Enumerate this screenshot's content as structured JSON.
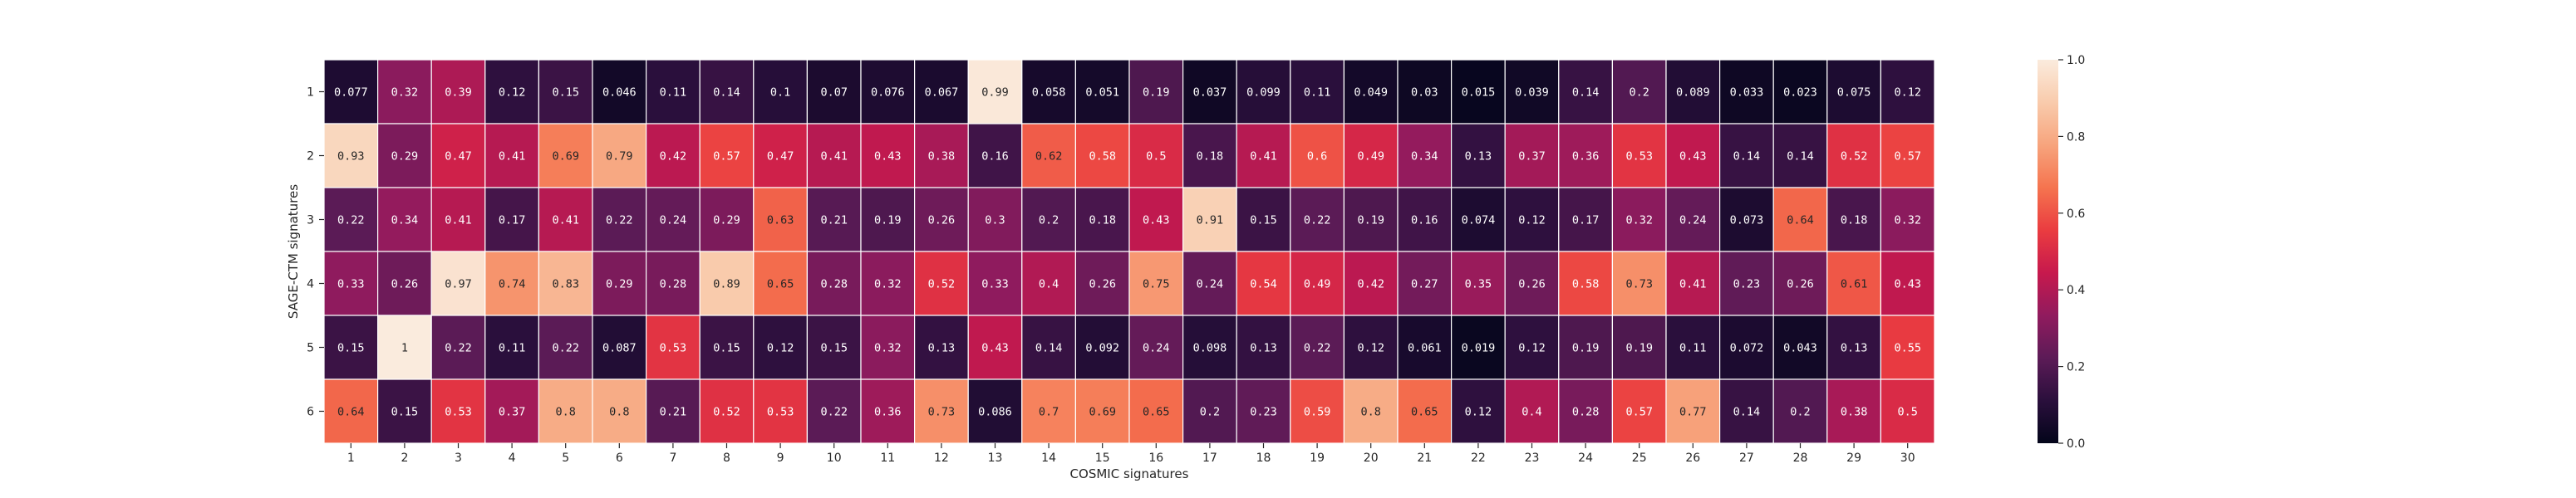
{
  "chart_data": {
    "type": "heatmap",
    "xlabel": "COSMIC signatures",
    "ylabel": "SAGE-CTM signatures",
    "x_categories": [
      "1",
      "2",
      "3",
      "4",
      "5",
      "6",
      "7",
      "8",
      "9",
      "10",
      "11",
      "12",
      "13",
      "14",
      "15",
      "16",
      "17",
      "18",
      "19",
      "20",
      "21",
      "22",
      "23",
      "24",
      "25",
      "26",
      "27",
      "28",
      "29",
      "30"
    ],
    "y_categories": [
      "1",
      "2",
      "3",
      "4",
      "5",
      "6"
    ],
    "values": [
      [
        0.077,
        0.32,
        0.39,
        0.12,
        0.15,
        0.046,
        0.11,
        0.14,
        0.1,
        0.07,
        0.076,
        0.067,
        0.99,
        0.058,
        0.051,
        0.19,
        0.037,
        0.099,
        0.11,
        0.049,
        0.03,
        0.015,
        0.039,
        0.14,
        0.2,
        0.089,
        0.033,
        0.023,
        0.075,
        0.12
      ],
      [
        0.93,
        0.29,
        0.47,
        0.41,
        0.69,
        0.79,
        0.42,
        0.57,
        0.47,
        0.41,
        0.43,
        0.38,
        0.16,
        0.62,
        0.58,
        0.5,
        0.18,
        0.41,
        0.6,
        0.49,
        0.34,
        0.13,
        0.37,
        0.36,
        0.53,
        0.43,
        0.14,
        0.14,
        0.52,
        0.57
      ],
      [
        0.22,
        0.34,
        0.41,
        0.17,
        0.41,
        0.22,
        0.24,
        0.29,
        0.63,
        0.21,
        0.19,
        0.26,
        0.3,
        0.2,
        0.18,
        0.43,
        0.91,
        0.15,
        0.22,
        0.19,
        0.16,
        0.074,
        0.12,
        0.17,
        0.32,
        0.24,
        0.073,
        0.64,
        0.18,
        0.32
      ],
      [
        0.33,
        0.26,
        0.97,
        0.74,
        0.83,
        0.29,
        0.28,
        0.89,
        0.65,
        0.28,
        0.32,
        0.52,
        0.33,
        0.4,
        0.26,
        0.75,
        0.24,
        0.54,
        0.49,
        0.42,
        0.27,
        0.35,
        0.26,
        0.58,
        0.73,
        0.41,
        0.23,
        0.26,
        0.61,
        0.43
      ],
      [
        0.15,
        1,
        0.22,
        0.11,
        0.22,
        0.087,
        0.53,
        0.15,
        0.12,
        0.15,
        0.32,
        0.13,
        0.43,
        0.14,
        0.092,
        0.24,
        0.098,
        0.13,
        0.22,
        0.12,
        0.061,
        0.019,
        0.12,
        0.19,
        0.19,
        0.11,
        0.072,
        0.043,
        0.13,
        0.55
      ],
      [
        0.64,
        0.15,
        0.53,
        0.37,
        0.8,
        0.8,
        0.21,
        0.52,
        0.53,
        0.22,
        0.36,
        0.73,
        0.086,
        0.7,
        0.69,
        0.65,
        0.2,
        0.23,
        0.59,
        0.8,
        0.65,
        0.12,
        0.4,
        0.28,
        0.57,
        0.77,
        0.14,
        0.2,
        0.38,
        0.5
      ]
    ],
    "value_labels": [
      [
        "0.077",
        "0.32",
        "0.39",
        "0.12",
        "0.15",
        "0.046",
        "0.11",
        "0.14",
        "0.1",
        "0.07",
        "0.076",
        "0.067",
        "0.99",
        "0.058",
        "0.051",
        "0.19",
        "0.037",
        "0.099",
        "0.11",
        "0.049",
        "0.03",
        "0.015",
        "0.039",
        "0.14",
        "0.2",
        "0.089",
        "0.033",
        "0.023",
        "0.075",
        "0.12"
      ],
      [
        "0.93",
        "0.29",
        "0.47",
        "0.41",
        "0.69",
        "0.79",
        "0.42",
        "0.57",
        "0.47",
        "0.41",
        "0.43",
        "0.38",
        "0.16",
        "0.62",
        "0.58",
        "0.5",
        "0.18",
        "0.41",
        "0.6",
        "0.49",
        "0.34",
        "0.13",
        "0.37",
        "0.36",
        "0.53",
        "0.43",
        "0.14",
        "0.14",
        "0.52",
        "0.57"
      ],
      [
        "0.22",
        "0.34",
        "0.41",
        "0.17",
        "0.41",
        "0.22",
        "0.24",
        "0.29",
        "0.63",
        "0.21",
        "0.19",
        "0.26",
        "0.3",
        "0.2",
        "0.18",
        "0.43",
        "0.91",
        "0.15",
        "0.22",
        "0.19",
        "0.16",
        "0.074",
        "0.12",
        "0.17",
        "0.32",
        "0.24",
        "0.073",
        "0.64",
        "0.18",
        "0.32"
      ],
      [
        "0.33",
        "0.26",
        "0.97",
        "0.74",
        "0.83",
        "0.29",
        "0.28",
        "0.89",
        "0.65",
        "0.28",
        "0.32",
        "0.52",
        "0.33",
        "0.4",
        "0.26",
        "0.75",
        "0.24",
        "0.54",
        "0.49",
        "0.42",
        "0.27",
        "0.35",
        "0.26",
        "0.58",
        "0.73",
        "0.41",
        "0.23",
        "0.26",
        "0.61",
        "0.43"
      ],
      [
        "0.15",
        "1",
        "0.22",
        "0.11",
        "0.22",
        "0.087",
        "0.53",
        "0.15",
        "0.12",
        "0.15",
        "0.32",
        "0.13",
        "0.43",
        "0.14",
        "0.092",
        "0.24",
        "0.098",
        "0.13",
        "0.22",
        "0.12",
        "0.061",
        "0.019",
        "0.12",
        "0.19",
        "0.19",
        "0.11",
        "0.072",
        "0.043",
        "0.13",
        "0.55"
      ],
      [
        "0.64",
        "0.15",
        "0.53",
        "0.37",
        "0.8",
        "0.8",
        "0.21",
        "0.52",
        "0.53",
        "0.22",
        "0.36",
        "0.73",
        "0.086",
        "0.7",
        "0.69",
        "0.65",
        "0.2",
        "0.23",
        "0.59",
        "0.8",
        "0.65",
        "0.12",
        "0.4",
        "0.28",
        "0.57",
        "0.77",
        "0.14",
        "0.2",
        "0.38",
        "0.5"
      ]
    ],
    "colormap": "rocket",
    "colormap_stops": [
      "#03051a",
      "#2a0f3c",
      "#5c1b57",
      "#911b5e",
      "#c7194d",
      "#ea3c40",
      "#f5744f",
      "#f7a47d",
      "#f9cbac",
      "#faebdd"
    ],
    "vmin": 0,
    "vmax": 1,
    "colorbar_ticks": [
      "0.0",
      "0.2",
      "0.4",
      "0.6",
      "0.8",
      "1.0"
    ],
    "grid_lines": true,
    "grid_color": "#ffffff"
  }
}
